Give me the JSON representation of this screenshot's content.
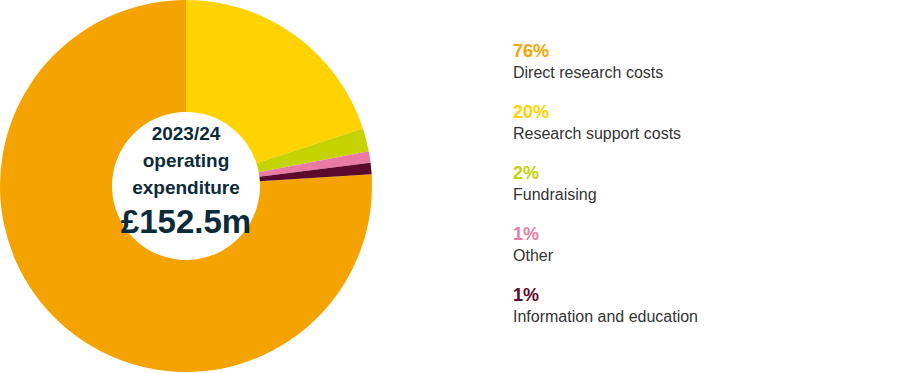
{
  "chart_data": {
    "type": "pie",
    "title": "2023/24 operating expenditure",
    "subtitle": "£152.5m",
    "categories": [
      "Direct research costs",
      "Research support costs",
      "Fundraising",
      "Other",
      "Information and education"
    ],
    "values": [
      76,
      20,
      2,
      1,
      1
    ],
    "value_labels": [
      "76%",
      "20%",
      "2%",
      "1%",
      "1%"
    ],
    "colors": [
      "#f5a300",
      "#ffd200",
      "#c5d300",
      "#e87aa3",
      "#5c0a2c"
    ],
    "legend": "right"
  }
}
